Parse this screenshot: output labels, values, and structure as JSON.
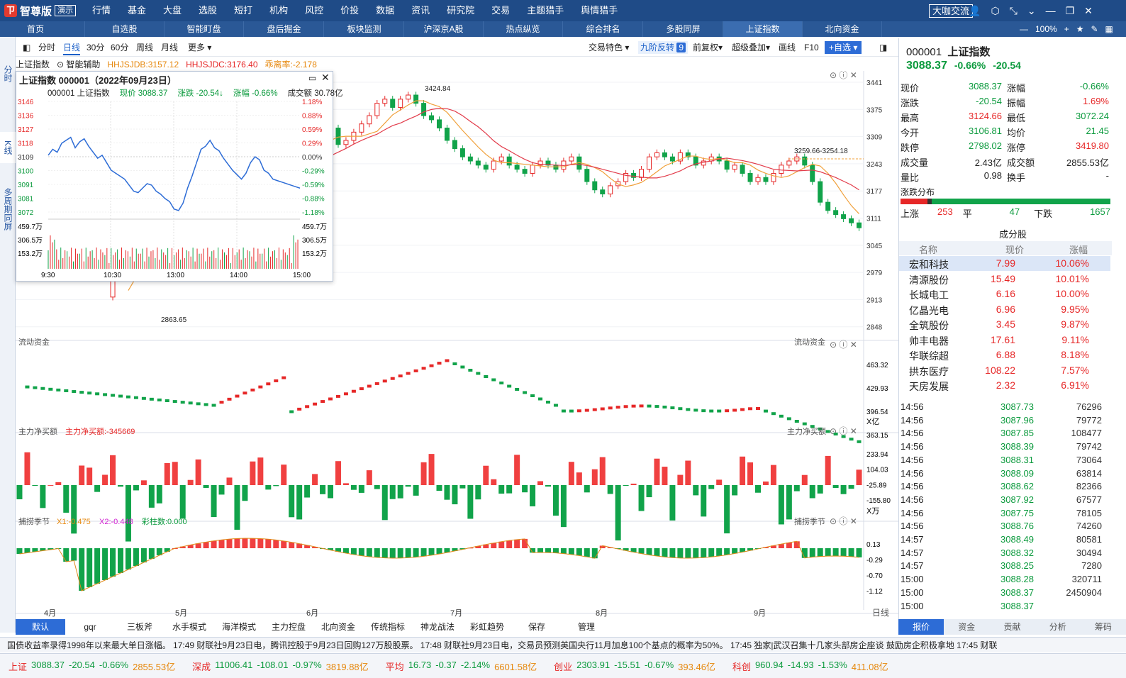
{
  "app": {
    "logo_text": "智尊版",
    "logo_badge": "演示",
    "menu": [
      "行情",
      "基金",
      "大盘",
      "选股",
      "短打",
      "机构",
      "风控",
      "价投",
      "数据",
      "资讯",
      "研究院",
      "交易",
      "主题猎手",
      "舆情猎手"
    ],
    "vip": "大咖交流"
  },
  "tabs": [
    "首页",
    "自选股",
    "智能盯盘",
    "盘后掘金",
    "板块监测",
    "沪深京A股",
    "热点纵览",
    "综合排名",
    "多股同屏",
    "上证指数",
    "北向资金"
  ],
  "zoom": "100%",
  "left_strip": [
    "分时",
    "K线",
    "多周期同屏"
  ],
  "toolbar": {
    "items": [
      "分时",
      "日线",
      "30分",
      "60分",
      "周线",
      "月线",
      "更多"
    ],
    "right": [
      "交易特色",
      "九阶反转",
      "前复权",
      "超级叠加",
      "画线",
      "F10",
      "+自选"
    ],
    "nine": "9"
  },
  "info": {
    "index": "上证指数",
    "smart": "智能辅助",
    "hhjsjdb": "HHJSJDB:3157.12",
    "hhjsjdc": "HHJSJDC:3176.40",
    "dev": "乖离率:-2.178"
  },
  "kchart": {
    "y_ticks": [
      "3441",
      "3375",
      "3309",
      "3243",
      "3177",
      "3111",
      "3045",
      "2979",
      "2913",
      "2848"
    ],
    "high_label": "3424.84",
    "low_label": "2863.65",
    "range_label": "3259.66-3254.18",
    "x_labels": [
      "4月",
      "5月",
      "6月",
      "7月",
      "8月",
      "9月"
    ],
    "period_label": "日线"
  },
  "panels": {
    "flow": {
      "title": "流动资金",
      "ticks": [
        "463.32",
        "429.93",
        "396.54",
        "363.15"
      ],
      "unit": "X亿"
    },
    "main": {
      "title": "主力净买额",
      "value": "主力净买额:-345669",
      "ticks": [
        "233.94",
        "104.03",
        "-25.89",
        "-155.80"
      ],
      "unit": "X万"
    },
    "season": {
      "title": "捕捞季节",
      "x1": "X1:-0.475",
      "x2": "X2:-0.448",
      "bar": "彩柱数:0.000",
      "ticks": [
        "0.13",
        "-0.29",
        "-0.70",
        "-1.12"
      ]
    }
  },
  "popup": {
    "title": "上证指数 000001（2022年09月23日）",
    "code": "000001 上证指数",
    "price": "现价 3088.37",
    "chg": "涨跌 -20.54↓",
    "pct": "涨幅 -0.66%",
    "vol": "成交额 30.78亿",
    "left_ticks": [
      "3146",
      "3136",
      "3127",
      "3118",
      "3109",
      "3100",
      "3091",
      "3081",
      "3072"
    ],
    "right_ticks": [
      "1.18%",
      "0.88%",
      "0.59%",
      "0.29%",
      "0.00%",
      "-0.29%",
      "-0.59%",
      "-0.88%",
      "-1.18%"
    ],
    "vol_ticks": [
      "459.7万",
      "306.5万",
      "153.2万"
    ],
    "times": [
      "9:30",
      "10:30",
      "13:00",
      "14:00",
      "15:00"
    ]
  },
  "quote": {
    "code": "000001",
    "name": "上证指数",
    "price": "3088.37",
    "pct": "-0.66%",
    "chg": "-20.54",
    "rows": [
      [
        "现价",
        "3088.37",
        "涨幅",
        "-0.66%"
      ],
      [
        "涨跌",
        "-20.54",
        "振幅",
        "1.69%"
      ],
      [
        "最高",
        "3124.66",
        "最低",
        "3072.24"
      ],
      [
        "今开",
        "3106.81",
        "均价",
        "21.45"
      ],
      [
        "跌停",
        "2798.02",
        "涨停",
        "3419.80"
      ],
      [
        "成交量",
        "2.43亿",
        "成交额",
        "2855.53亿"
      ],
      [
        "量比",
        "0.98",
        "换手",
        "-"
      ]
    ],
    "dist_title": "涨跌分布",
    "up_label": "上涨",
    "up": "253",
    "flat_label": "平",
    "flat": "47",
    "down_label": "下跌",
    "down": "1657",
    "up_pct": 0.13,
    "flat_pct": 0.02
  },
  "constituents": {
    "title": "成分股",
    "headers": [
      "名称",
      "现价",
      "涨幅"
    ],
    "rows": [
      [
        "宏和科技",
        "7.99",
        "10.06%"
      ],
      [
        "清源股份",
        "15.49",
        "10.01%"
      ],
      [
        "长城电工",
        "6.16",
        "10.00%"
      ],
      [
        "亿晶光电",
        "6.96",
        "9.95%"
      ],
      [
        "全筑股份",
        "3.45",
        "9.87%"
      ],
      [
        "帅丰电器",
        "17.61",
        "9.11%"
      ],
      [
        "华联综超",
        "6.88",
        "8.18%"
      ],
      [
        "拱东医疗",
        "108.22",
        "7.57%"
      ],
      [
        "天房发展",
        "2.32",
        "6.91%"
      ]
    ]
  },
  "ticks": [
    [
      "14:56",
      "3087.73",
      "76296"
    ],
    [
      "14:56",
      "3087.96",
      "79772"
    ],
    [
      "14:56",
      "3087.85",
      "108477"
    ],
    [
      "14:56",
      "3088.39",
      "79742"
    ],
    [
      "14:56",
      "3088.31",
      "73064"
    ],
    [
      "14:56",
      "3088.09",
      "63814"
    ],
    [
      "14:56",
      "3088.62",
      "82366"
    ],
    [
      "14:56",
      "3087.92",
      "67577"
    ],
    [
      "14:56",
      "3087.75",
      "78105"
    ],
    [
      "14:56",
      "3088.76",
      "74260"
    ],
    [
      "14:57",
      "3088.49",
      "80581"
    ],
    [
      "14:57",
      "3088.32",
      "30494"
    ],
    [
      "14:57",
      "3088.25",
      "7280"
    ],
    [
      "15:00",
      "3088.28",
      "320711"
    ],
    [
      "15:00",
      "3088.37",
      "2450904"
    ],
    [
      "15:00",
      "3088.37",
      ""
    ]
  ],
  "right_tabs": [
    "报价",
    "资金",
    "贡献",
    "分析",
    "筹码"
  ],
  "indicator_tabs": [
    "默认",
    "gqr",
    "三板斧",
    "水手模式",
    "海洋模式",
    "主力控盘",
    "北向资金",
    "传统指标",
    "神龙战法",
    "彩虹趋势",
    "保存",
    "管理"
  ],
  "news": "国债收益率录得1998年以来最大单日涨幅。      17:49 财联社9月23日电，腾讯控股于9月23日回购127万股股票。      17:48 财联社9月23日电，交易员预测英国央行11月加息100个基点的概率为50%。      17:45 独家|武汉召集十几家头部房企座谈 鼓励房企积极拿地      17:45 财联",
  "status": [
    [
      "上证",
      "3088.37",
      "-20.54",
      "-0.66%",
      "2855.53亿"
    ],
    [
      "深成",
      "11006.41",
      "-108.01",
      "-0.97%",
      "3819.88亿"
    ],
    [
      "平均",
      "16.73",
      "-0.37",
      "-2.14%",
      "6601.58亿"
    ],
    [
      "创业",
      "2303.91",
      "-15.51",
      "-0.67%",
      "393.46亿"
    ],
    [
      "科创",
      "960.94",
      "-14.93",
      "-1.53%",
      "411.08亿"
    ]
  ]
}
